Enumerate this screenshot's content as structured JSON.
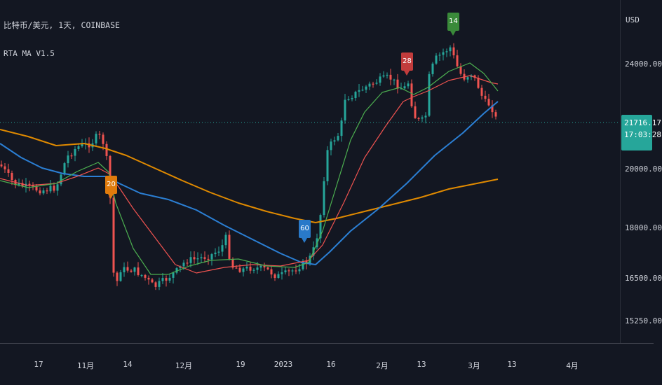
{
  "header": {
    "title": "比特币/美元, 1天, COINBASE",
    "indicator_name": "RTA MA V1.5"
  },
  "price_axis": {
    "currency": "USD",
    "ticks": [
      "24000.00",
      "20000.00",
      "18000.00",
      "16500.00",
      "15250.00"
    ],
    "current_price": "21716.17",
    "countdown": "17:03:28"
  },
  "time_axis": {
    "ticks": [
      "17",
      "11月",
      "14",
      "12月",
      "19",
      "2023",
      "16",
      "2月",
      "13",
      "3月",
      "13",
      "4月"
    ]
  },
  "flags": [
    {
      "label": "20",
      "color": "#e07b0c"
    },
    {
      "label": "60",
      "color": "#2979c9"
    },
    {
      "label": "28",
      "color": "#c23c3c"
    },
    {
      "label": "14",
      "color": "#3a8a3a"
    }
  ],
  "colors": {
    "background": "#131722",
    "up_candle": "#26a69a",
    "down_candle": "#ef5350",
    "ma_green": "#4caf50",
    "ma_red": "#ef5350",
    "ma_blue": "#2b7fd4",
    "ma_orange": "#e08a00"
  }
}
